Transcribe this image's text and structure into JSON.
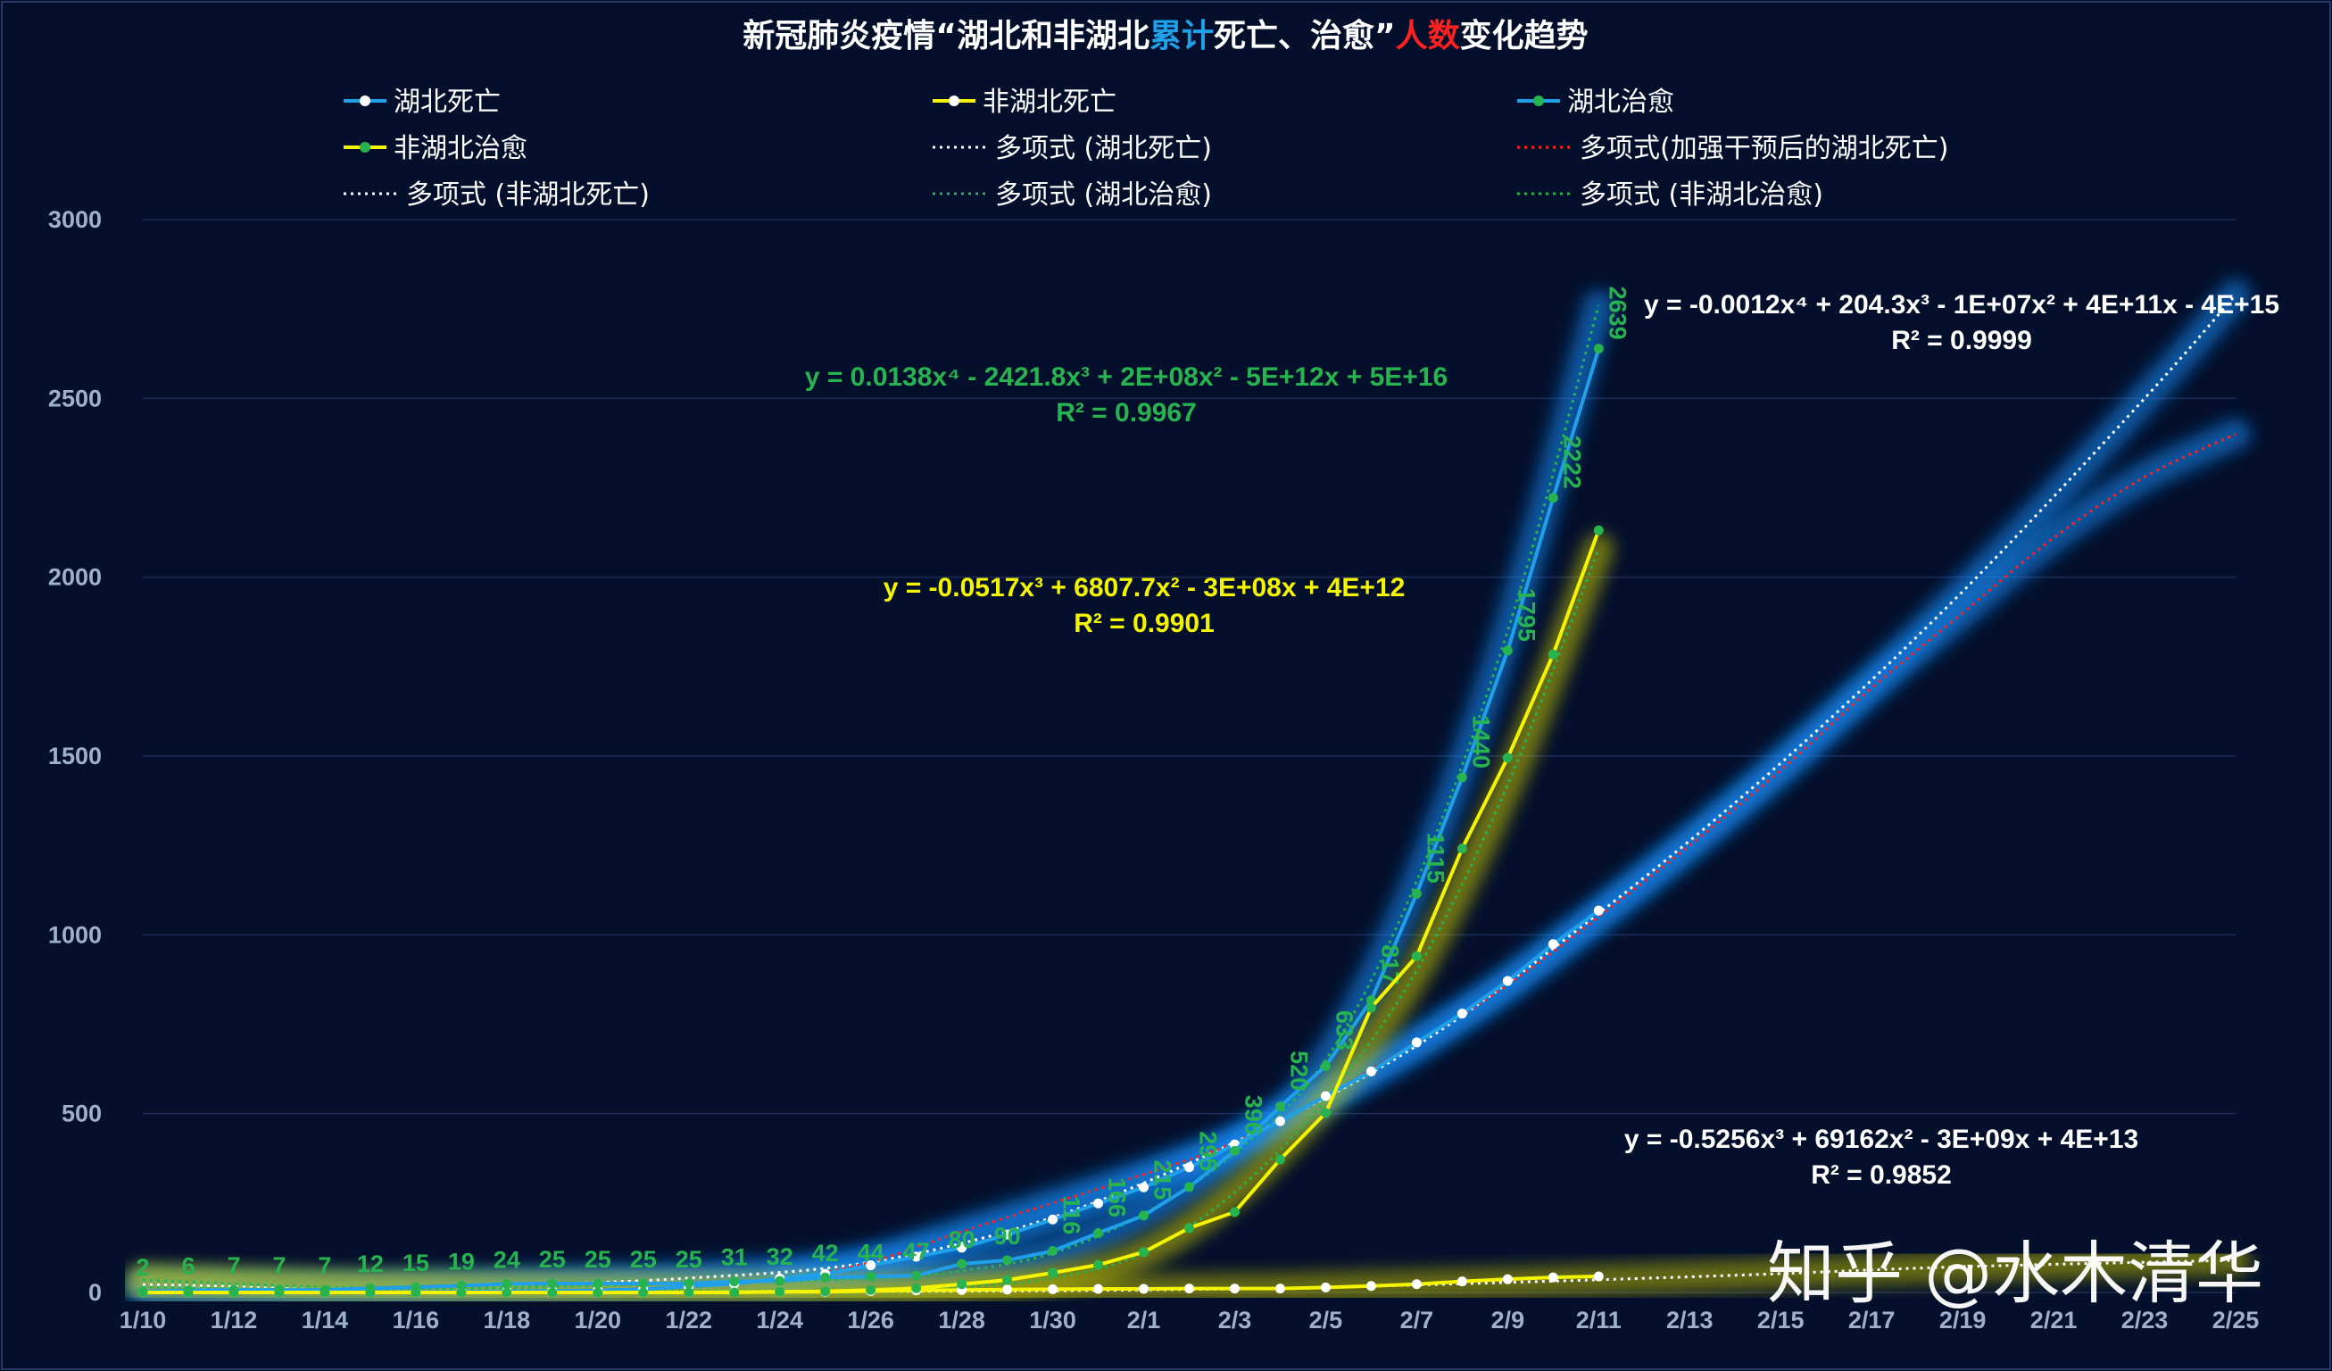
{
  "chart_data": {
    "type": "line",
    "title": "新冠肺炎疫情“湖北和非湖北累计死亡、治愈”人数变化趋势",
    "title_parts": [
      {
        "text": "新冠肺炎疫情“湖北和非湖北",
        "color": "#ffffff"
      },
      {
        "text": "累计",
        "color": "#1fa0e8"
      },
      {
        "text": "死亡、治愈”",
        "color": "#ffffff"
      },
      {
        "text": "人数",
        "color": "#ff2020"
      },
      {
        "text": "变化趋势",
        "color": "#ffffff"
      }
    ],
    "xlabel": "",
    "ylabel": "",
    "ylim": [
      0,
      3000
    ],
    "yticks": [
      "0",
      "500",
      "1000",
      "1500",
      "2000",
      "2500",
      "3000"
    ],
    "x_categories": [
      "1/10",
      "1/11",
      "1/12",
      "1/13",
      "1/14",
      "1/15",
      "1/16",
      "1/17",
      "1/18",
      "1/19",
      "1/20",
      "1/21",
      "1/22",
      "1/23",
      "1/24",
      "1/25",
      "1/26",
      "1/27",
      "1/28",
      "1/29",
      "1/30",
      "1/31",
      "2/1",
      "2/2",
      "2/3",
      "2/4",
      "2/5",
      "2/6",
      "2/7",
      "2/8",
      "2/9",
      "2/10",
      "2/11",
      "2/12",
      "2/13",
      "2/14",
      "2/15",
      "2/16",
      "2/17",
      "2/18",
      "2/19",
      "2/20",
      "2/21",
      "2/22",
      "2/23",
      "2/24",
      "2/25"
    ],
    "xtick_labels": [
      "1/10",
      "1/12",
      "1/14",
      "1/16",
      "1/18",
      "1/20",
      "1/22",
      "1/24",
      "1/26",
      "1/28",
      "1/30",
      "2/1",
      "2/3",
      "2/5",
      "2/7",
      "2/9",
      "2/11",
      "2/13",
      "2/15",
      "2/17",
      "2/19",
      "2/21",
      "2/23",
      "2/25"
    ],
    "grid": true,
    "legend_position": "top",
    "legend": [
      {
        "label": "湖北死亡",
        "style": "line-marker",
        "color": "#1fa0e8",
        "marker": "#ffffff"
      },
      {
        "label": "非湖北死亡",
        "style": "line-marker",
        "color": "#f4f400",
        "marker": "#ffffff"
      },
      {
        "label": "湖北治愈",
        "style": "line-marker",
        "color": "#1fa0e8",
        "marker": "#27b34f"
      },
      {
        "label": "非湖北治愈",
        "style": "line-marker",
        "color": "#f4f400",
        "marker": "#27b34f"
      },
      {
        "label": "多项式 (湖北死亡)",
        "style": "dotted",
        "color": "#ffffff"
      },
      {
        "label": "多项式(加强干预后的湖北死亡)",
        "style": "dotted",
        "color": "#ff2020"
      },
      {
        "label": "多项式 (非湖北死亡)",
        "style": "dotted",
        "color": "#ffffff"
      },
      {
        "label": "多项式 (湖北治愈)",
        "style": "dotted",
        "color": "#27b34f"
      },
      {
        "label": "多项式 (非湖北治愈)",
        "style": "dotted",
        "color": "#27b34f"
      }
    ],
    "series": [
      {
        "name": "湖北死亡",
        "color": "#1fa0e8",
        "marker": "#ffffff",
        "x": [
          "1/10",
          "1/11",
          "1/12",
          "1/13",
          "1/14",
          "1/15",
          "1/16",
          "1/17",
          "1/18",
          "1/19",
          "1/20",
          "1/21",
          "1/22",
          "1/23",
          "1/24",
          "1/25",
          "1/26",
          "1/27",
          "1/28",
          "1/29",
          "1/30",
          "1/31",
          "2/1",
          "2/2",
          "2/3",
          "2/4",
          "2/5",
          "2/6",
          "2/7",
          "2/8",
          "2/9",
          "2/10",
          "2/11"
        ],
        "values": [
          1,
          1,
          1,
          1,
          1,
          1,
          1,
          2,
          3,
          4,
          6,
          9,
          17,
          24,
          39,
          52,
          76,
          100,
          125,
          162,
          204,
          249,
          294,
          350,
          414,
          479,
          549,
          618,
          699,
          780,
          871,
          974,
          1068
        ]
      },
      {
        "name": "非湖北死亡",
        "color": "#f4f400",
        "marker": "#ffffff",
        "x": [
          "1/10",
          "1/11",
          "1/12",
          "1/13",
          "1/14",
          "1/15",
          "1/16",
          "1/17",
          "1/18",
          "1/19",
          "1/20",
          "1/21",
          "1/22",
          "1/23",
          "1/24",
          "1/25",
          "1/26",
          "1/27",
          "1/28",
          "1/29",
          "1/30",
          "1/31",
          "2/1",
          "2/2",
          "2/3",
          "2/4",
          "2/5",
          "2/6",
          "2/7",
          "2/8",
          "2/9",
          "2/10",
          "2/11"
        ],
        "values": [
          0,
          0,
          0,
          0,
          0,
          0,
          0,
          0,
          0,
          0,
          0,
          0,
          0,
          1,
          2,
          2,
          4,
          6,
          7,
          8,
          9,
          10,
          10,
          11,
          11,
          11,
          14,
          18,
          23,
          31,
          37,
          42,
          45
        ]
      },
      {
        "name": "湖北治愈",
        "color": "#1fa0e8",
        "marker": "#27b34f",
        "x": [
          "1/10",
          "1/11",
          "1/12",
          "1/13",
          "1/14",
          "1/15",
          "1/16",
          "1/17",
          "1/18",
          "1/19",
          "1/20",
          "1/21",
          "1/22",
          "1/23",
          "1/24",
          "1/25",
          "1/26",
          "1/27",
          "1/28",
          "1/29",
          "1/30",
          "1/31",
          "2/1",
          "2/2",
          "2/3",
          "2/4",
          "2/5",
          "2/6",
          "2/7",
          "2/8",
          "2/9",
          "2/10",
          "2/11"
        ],
        "values": [
          2,
          6,
          7,
          7,
          7,
          12,
          15,
          19,
          24,
          25,
          25,
          25,
          25,
          31,
          32,
          42,
          44,
          47,
          80,
          90,
          116,
          166,
          215,
          295,
          396,
          520,
          633,
          817,
          1115,
          1440,
          1795,
          2222,
          2639
        ]
      },
      {
        "name": "非湖北治愈",
        "color": "#f4f400",
        "marker": "#27b34f",
        "x": [
          "1/10",
          "1/11",
          "1/12",
          "1/13",
          "1/14",
          "1/15",
          "1/16",
          "1/17",
          "1/18",
          "1/19",
          "1/20",
          "1/21",
          "1/22",
          "1/23",
          "1/24",
          "1/25",
          "1/26",
          "1/27",
          "1/28",
          "1/29",
          "1/30",
          "1/31",
          "2/1",
          "2/2",
          "2/3",
          "2/4",
          "2/5",
          "2/6",
          "2/7",
          "2/8",
          "2/9",
          "2/10",
          "2/11"
        ],
        "values": [
          0,
          0,
          0,
          0,
          0,
          0,
          0,
          0,
          0,
          0,
          0,
          0,
          0,
          0,
          2,
          3,
          7,
          12,
          23,
          35,
          55,
          77,
          113,
          180,
          225,
          372,
          502,
          796,
          940,
          1241,
          1495,
          1784,
          2131
        ]
      },
      {
        "name": "多项式 (湖北死亡)",
        "type": "trendline",
        "color": "#ffffff",
        "based_on": "湖北死亡",
        "x": [
          "1/10",
          "1/14",
          "1/18",
          "1/22",
          "1/26",
          "1/30",
          "2/3",
          "2/7",
          "2/11",
          "2/15",
          "2/19",
          "2/23",
          "2/25"
        ],
        "values": [
          20,
          8,
          20,
          40,
          85,
          210,
          420,
          690,
          1060,
          1480,
          1960,
          2500,
          2790
        ]
      },
      {
        "name": "多项式(加强干预后的湖北死亡)",
        "type": "trendline",
        "color": "#ff2020",
        "based_on": "湖北死亡",
        "x": [
          "1/24",
          "1/26",
          "1/28",
          "1/30",
          "2/1",
          "2/3",
          "2/5",
          "2/7",
          "2/9",
          "2/11",
          "2/13",
          "2/15",
          "2/17",
          "2/19",
          "2/21",
          "2/23",
          "2/25"
        ],
        "values": [
          30,
          85,
          170,
          250,
          330,
          420,
          550,
          700,
          860,
          1050,
          1250,
          1460,
          1690,
          1900,
          2110,
          2280,
          2400
        ]
      },
      {
        "name": "多项式 (非湖北死亡)",
        "type": "trendline",
        "color": "#ffffff",
        "based_on": "非湖北死亡",
        "x": [
          "1/10",
          "1/15",
          "1/20",
          "1/25",
          "1/30",
          "2/4",
          "2/9",
          "2/14",
          "2/19",
          "2/25"
        ],
        "values": [
          22,
          10,
          5,
          3,
          5,
          12,
          28,
          48,
          72,
          90
        ]
      },
      {
        "name": "多项式 (湖北治愈)",
        "type": "trendline",
        "color": "#27b34f",
        "based_on": "湖北治愈",
        "x": [
          "1/10",
          "1/14",
          "1/18",
          "1/22",
          "1/26",
          "1/28",
          "1/30",
          "2/1",
          "2/3",
          "2/5",
          "2/7",
          "2/9",
          "2/11"
        ],
        "values": [
          15,
          8,
          15,
          25,
          40,
          60,
          110,
          220,
          390,
          650,
          1150,
          1850,
          2760
        ]
      },
      {
        "name": "多项式 (非湖北治愈)",
        "type": "trendline",
        "color": "#27b34f",
        "based_on": "非湖北治愈",
        "x": [
          "1/10",
          "1/14",
          "1/18",
          "1/22",
          "1/26",
          "1/28",
          "1/30",
          "2/1",
          "2/3",
          "2/5",
          "2/7",
          "2/9",
          "2/11"
        ],
        "values": [
          35,
          15,
          8,
          5,
          5,
          15,
          40,
          110,
          280,
          540,
          900,
          1420,
          2080
        ]
      }
    ],
    "equations": [
      {
        "text": "y = 0.0138x⁴ - 2421.8x³ + 2E+08x² - 5E+12x + 5E+16",
        "r2": "R² = 0.9967",
        "color": "#27b34f"
      },
      {
        "text": "y = -0.0517x³ + 6807.7x² - 3E+08x + 4E+12",
        "r2": "R² = 0.9901",
        "color": "#f4f400"
      },
      {
        "text": "y = -0.0012x⁴ + 204.3x³ - 1E+07x² + 4E+11x - 4E+15",
        "r2": "R² = 0.9999",
        "color": "#ffffff"
      },
      {
        "text": "y = -0.5256x³ + 69162x² - 3E+09x + 4E+13",
        "r2": "R² = 0.9852",
        "color": "#ffffff"
      }
    ]
  },
  "watermark": "知乎 @水木清华"
}
